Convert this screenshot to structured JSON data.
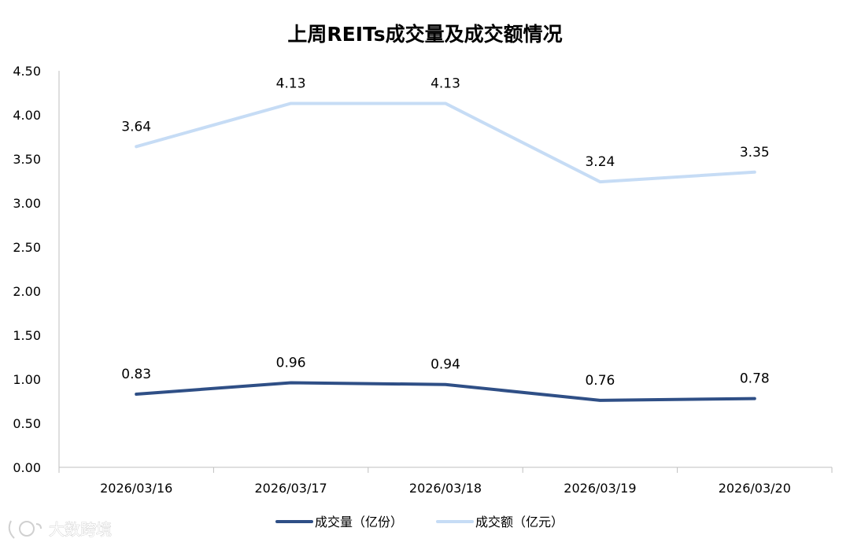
{
  "chart_data": {
    "type": "line",
    "title": "上周REITs成交量及成交额情况",
    "categories": [
      "2026/03/16",
      "2026/03/17",
      "2026/03/18",
      "2026/03/19",
      "2026/03/20"
    ],
    "series": [
      {
        "name": "成交量（亿份）",
        "values": [
          0.83,
          0.96,
          0.94,
          0.76,
          0.78
        ],
        "color": "#2f4f86"
      },
      {
        "name": "成交额（亿元）",
        "values": [
          3.64,
          4.13,
          4.13,
          3.24,
          3.35
        ],
        "color": "#c6dcf5"
      }
    ],
    "y_ticks": [
      "0.00",
      "0.50",
      "1.00",
      "1.50",
      "2.00",
      "2.50",
      "3.00",
      "3.50",
      "4.00",
      "4.50"
    ],
    "ylim": [
      0,
      4.5
    ],
    "grid": false,
    "legend_position": "bottom",
    "data_labels": true
  },
  "watermark": {
    "text": "大数跨境",
    "icon": "logo-icon"
  }
}
